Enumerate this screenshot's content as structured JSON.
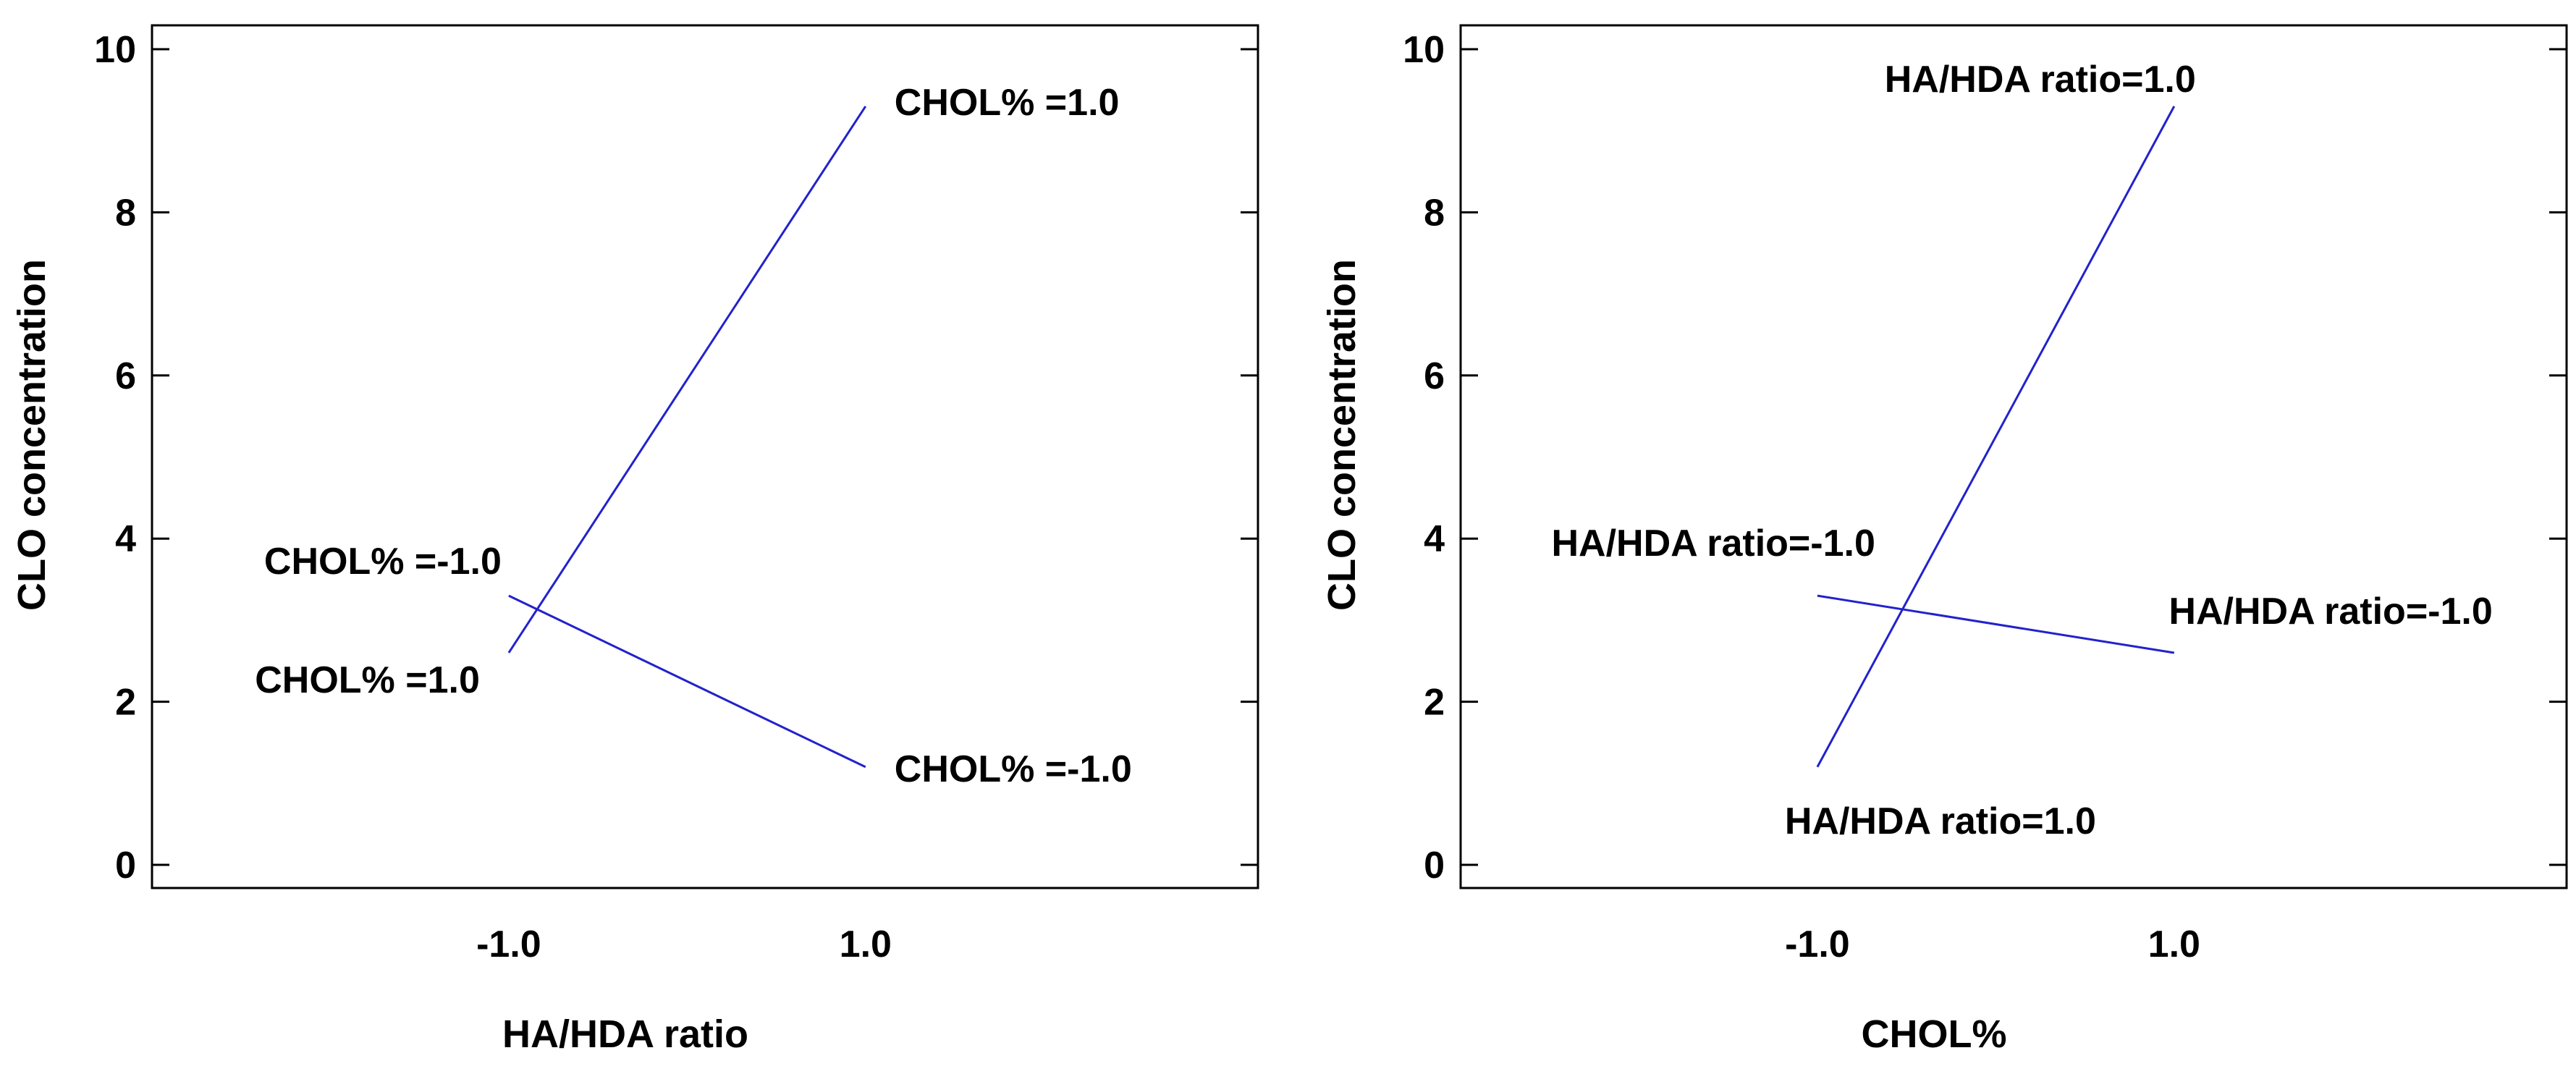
{
  "chart_data": [
    {
      "type": "line",
      "title": "",
      "xlabel": "HA/HDA ratio",
      "ylabel": "CLO concentration",
      "ylim": [
        0,
        10
      ],
      "y_ticks": [
        0,
        2,
        4,
        6,
        8,
        10
      ],
      "x_ticks": [
        -1.0,
        1.0
      ],
      "x_tick_labels": [
        "-1.0",
        "1.0"
      ],
      "xlim": [
        -3.0,
        3.2
      ],
      "line_color": "#2222cc",
      "series": [
        {
          "name": "CHOL% =1.0",
          "x": [
            -1.0,
            1.0
          ],
          "y": [
            2.6,
            9.3
          ],
          "start_label": "CHOL% =1.0",
          "end_label": "CHOL% =1.0"
        },
        {
          "name": "CHOL% =-1.0",
          "x": [
            -1.0,
            1.0
          ],
          "y": [
            3.3,
            1.2
          ],
          "start_label": "CHOL% =-1.0",
          "end_label": "CHOL% =-1.0"
        }
      ]
    },
    {
      "type": "line",
      "title": "",
      "xlabel": "CHOL%",
      "ylabel": "CLO concentration",
      "ylim": [
        0,
        10
      ],
      "y_ticks": [
        0,
        2,
        4,
        6,
        8,
        10
      ],
      "x_ticks": [
        -1.0,
        1.0
      ],
      "x_tick_labels": [
        "-1.0",
        "1.0"
      ],
      "xlim": [
        -3.0,
        3.2
      ],
      "line_color": "#2222cc",
      "series": [
        {
          "name": "HA/HDA ratio=1.0",
          "x": [
            -1.0,
            1.0
          ],
          "y": [
            1.2,
            9.3
          ],
          "start_label": "HA/HDA ratio=1.0",
          "end_label": "HA/HDA ratio=1.0"
        },
        {
          "name": "HA/HDA ratio=-1.0",
          "x": [
            -1.0,
            1.0
          ],
          "y": [
            3.3,
            2.6
          ],
          "start_label": "HA/HDA ratio=-1.0",
          "end_label": "HA/HDA ratio=-1.0"
        }
      ]
    }
  ]
}
